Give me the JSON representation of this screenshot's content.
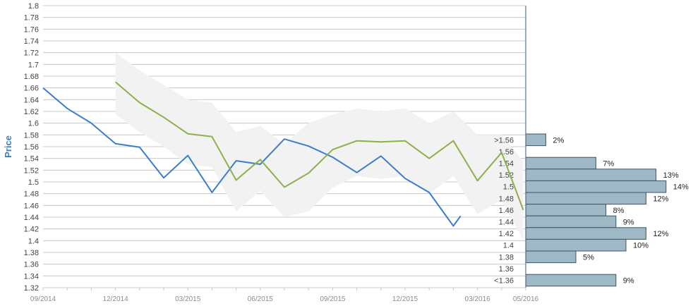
{
  "chart_data": {
    "type": "line",
    "ylabel": "Price",
    "ylim": [
      1.32,
      1.8
    ],
    "y_ticks": [
      "1.8",
      "1.78",
      "1.76",
      "1.74",
      "1.72",
      "1.7",
      "1.68",
      "1.66",
      "1.64",
      "1.62",
      "1.6",
      "1.58",
      "1.56",
      "1.54",
      "1.52",
      "1.5",
      "1.48",
      "1.46",
      "1.44",
      "1.42",
      "1.4",
      "1.38",
      "1.36",
      "1.34",
      "1.32"
    ],
    "x_tick_labels": [
      "09/2014",
      "12/2014",
      "03/2015",
      "06/2015",
      "09/2015",
      "12/2015",
      "03/2016",
      "05/2016"
    ],
    "x_tick_months": [
      0,
      3,
      6,
      9,
      12,
      15,
      18,
      20
    ],
    "xlim": [
      0,
      20
    ],
    "grid": true,
    "series": [
      {
        "color": "#3a7dc9",
        "x": [
          0,
          1,
          2,
          3,
          4,
          5,
          6,
          7,
          8,
          9,
          10,
          11,
          12,
          13,
          14,
          15,
          16,
          17,
          17.3
        ],
        "values": [
          1.66,
          1.625,
          1.6,
          1.565,
          1.559,
          1.507,
          1.545,
          1.482,
          1.536,
          1.53,
          1.573,
          1.561,
          1.542,
          1.516,
          1.544,
          1.506,
          1.482,
          1.425,
          1.442
        ]
      },
      {
        "color": "#8db04a",
        "x": [
          3,
          4,
          5,
          6,
          7,
          8,
          9,
          10,
          11,
          12,
          13,
          14,
          15,
          16,
          17,
          18,
          19,
          19.9
        ],
        "values": [
          1.67,
          1.635,
          1.61,
          1.582,
          1.577,
          1.503,
          1.538,
          1.491,
          1.515,
          1.555,
          1.57,
          1.568,
          1.57,
          1.54,
          1.57,
          1.502,
          1.55,
          1.452
        ]
      }
    ],
    "band": {
      "color": "#f2f2f2",
      "x": [
        3,
        4,
        5,
        6,
        7,
        8,
        9,
        10,
        11,
        12,
        13,
        14,
        15,
        16,
        17,
        18,
        19,
        19.9
      ],
      "upper": [
        1.72,
        1.69,
        1.665,
        1.64,
        1.635,
        1.585,
        1.595,
        1.565,
        1.6,
        1.615,
        1.625,
        1.62,
        1.625,
        1.6,
        1.62,
        1.58,
        1.58,
        1.535
      ],
      "lower": [
        1.615,
        1.585,
        1.56,
        1.53,
        1.525,
        1.45,
        1.485,
        1.44,
        1.45,
        1.49,
        1.51,
        1.505,
        1.51,
        1.48,
        1.51,
        1.445,
        1.47,
        1.4
      ]
    },
    "distribution": {
      "color": "#9fb8c6",
      "bins": [
        {
          "label": ">1.56",
          "pct": 2,
          "pct_label": "2%"
        },
        {
          "label": "1.56",
          "pct": 0,
          "pct_label": ""
        },
        {
          "label": "1.54",
          "pct": 7,
          "pct_label": "7%"
        },
        {
          "label": "1.52",
          "pct": 13,
          "pct_label": "13%"
        },
        {
          "label": "1.5",
          "pct": 14,
          "pct_label": "14%"
        },
        {
          "label": "1.48",
          "pct": 12,
          "pct_label": "12%"
        },
        {
          "label": "1.46",
          "pct": 8,
          "pct_label": "8%"
        },
        {
          "label": "1.44",
          "pct": 9,
          "pct_label": "9%"
        },
        {
          "label": "1.42",
          "pct": 12,
          "pct_label": "12%"
        },
        {
          "label": "1.4",
          "pct": 10,
          "pct_label": "10%"
        },
        {
          "label": "1.38",
          "pct": 5,
          "pct_label": "5%"
        },
        {
          "label": "1.36",
          "pct": 0,
          "pct_label": ""
        },
        {
          "label": "<1.36",
          "pct": 9,
          "pct_label": "9%"
        }
      ]
    }
  }
}
